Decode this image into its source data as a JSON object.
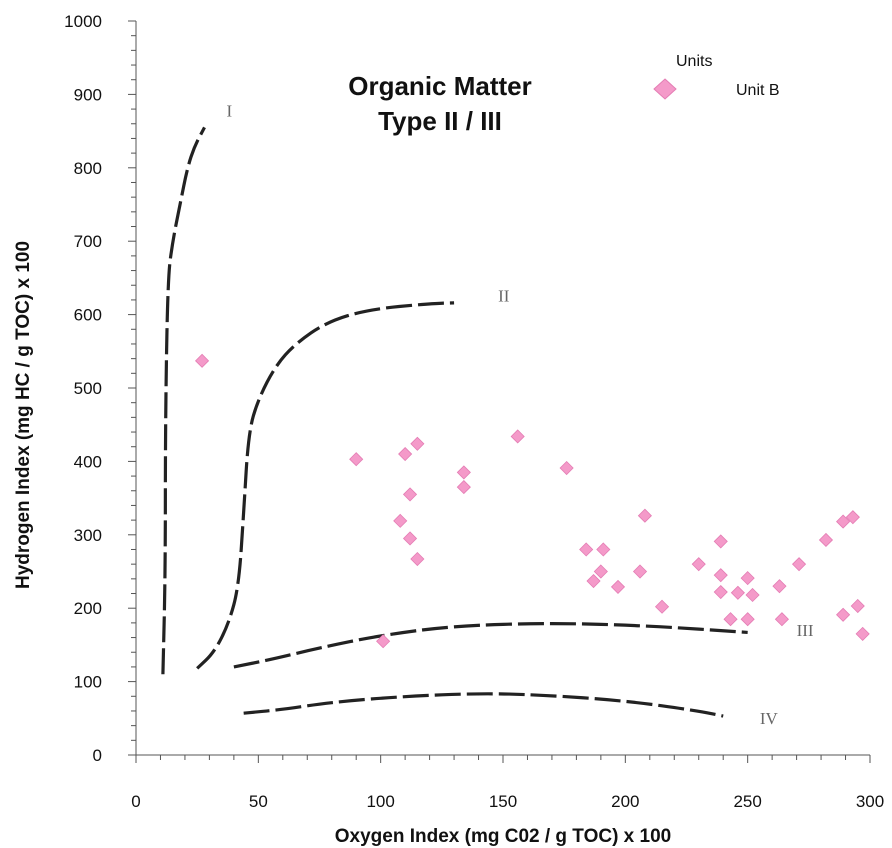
{
  "chart_data": {
    "type": "scatter",
    "title": [
      "Organic Matter",
      "Type II / III"
    ],
    "xlabel": "Oxygen Index (mg C02 / g TOC) x 100",
    "ylabel": "Hydrogen Index (mg HC / g TOC) x 100",
    "xlim": [
      0,
      300
    ],
    "ylim": [
      0,
      1000
    ],
    "xticks": [
      0,
      50,
      100,
      150,
      200,
      250,
      300
    ],
    "yticks": [
      0,
      100,
      200,
      300,
      400,
      500,
      600,
      700,
      800,
      900,
      1000
    ],
    "grid": false,
    "legend": {
      "title": "Units",
      "placement": "top-right",
      "entries": [
        {
          "name": "Unit B",
          "color": "#f49ac9",
          "marker": "diamond"
        }
      ]
    },
    "series": [
      {
        "name": "Unit B",
        "color": "#f49ac9",
        "points": [
          [
            27,
            537
          ],
          [
            90,
            403
          ],
          [
            101,
            155
          ],
          [
            108,
            319
          ],
          [
            110,
            410
          ],
          [
            112,
            355
          ],
          [
            112,
            295
          ],
          [
            115,
            424
          ],
          [
            115,
            267
          ],
          [
            134,
            385
          ],
          [
            134,
            365
          ],
          [
            156,
            434
          ],
          [
            176,
            391
          ],
          [
            184,
            280
          ],
          [
            187,
            237
          ],
          [
            190,
            250
          ],
          [
            191,
            280
          ],
          [
            197,
            229
          ],
          [
            206,
            250
          ],
          [
            208,
            326
          ],
          [
            215,
            202
          ],
          [
            230,
            260
          ],
          [
            239,
            291
          ],
          [
            239,
            245
          ],
          [
            239,
            222
          ],
          [
            243,
            185
          ],
          [
            246,
            221
          ],
          [
            250,
            241
          ],
          [
            250,
            185
          ],
          [
            252,
            218
          ],
          [
            263,
            230
          ],
          [
            264,
            185
          ],
          [
            271,
            260
          ],
          [
            282,
            293
          ],
          [
            289,
            318
          ],
          [
            289,
            191
          ],
          [
            293,
            324
          ],
          [
            295,
            203
          ],
          [
            297,
            165
          ]
        ]
      }
    ],
    "reference_curves": [
      {
        "label": "I",
        "points": [
          [
            11,
            110
          ],
          [
            12,
            250
          ],
          [
            12,
            450
          ],
          [
            13,
            650
          ],
          [
            15,
            700
          ],
          [
            18,
            750
          ],
          [
            21,
            800
          ],
          [
            24,
            830
          ],
          [
            28,
            855
          ]
        ]
      },
      {
        "label": "II",
        "points": [
          [
            25,
            118
          ],
          [
            32,
            140
          ],
          [
            38,
            180
          ],
          [
            42,
            230
          ],
          [
            44,
            330
          ],
          [
            46,
            440
          ],
          [
            50,
            485
          ],
          [
            57,
            530
          ],
          [
            65,
            560
          ],
          [
            78,
            590
          ],
          [
            95,
            607
          ],
          [
            120,
            615
          ],
          [
            130,
            616
          ]
        ]
      },
      {
        "label": "III",
        "points": [
          [
            40,
            120
          ],
          [
            55,
            130
          ],
          [
            75,
            146
          ],
          [
            100,
            163
          ],
          [
            130,
            176
          ],
          [
            170,
            180
          ],
          [
            210,
            176
          ],
          [
            250,
            167
          ]
        ]
      },
      {
        "label": "IV",
        "points": [
          [
            44,
            57
          ],
          [
            60,
            62
          ],
          [
            80,
            72
          ],
          [
            110,
            80
          ],
          [
            140,
            84
          ],
          [
            165,
            82
          ],
          [
            200,
            74
          ],
          [
            230,
            60
          ],
          [
            240,
            53
          ]
        ]
      }
    ],
    "reference_labels": [
      {
        "text": "I",
        "x": 37,
        "y": 870
      },
      {
        "text": "II",
        "x": 148,
        "y": 618
      },
      {
        "text": "III",
        "x": 270,
        "y": 162
      },
      {
        "text": "IV",
        "x": 255,
        "y": 42
      }
    ]
  }
}
